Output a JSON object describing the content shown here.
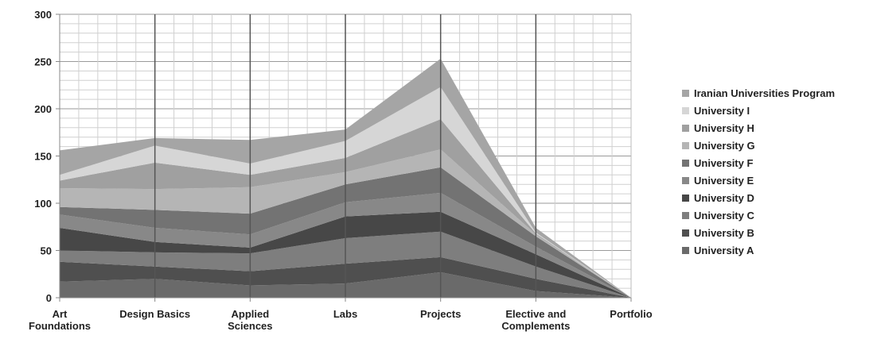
{
  "chart_data": {
    "type": "area",
    "stacked": true,
    "categories": [
      "Art Foundations",
      "Design Basics",
      "Applied Sciences",
      "Labs",
      "Projects",
      "Elective and Complements",
      "Portfolio"
    ],
    "ylim": [
      0,
      300
    ],
    "yticks": [
      0,
      50,
      100,
      150,
      200,
      250,
      300
    ],
    "grid": true,
    "legend_position": "right",
    "series": [
      {
        "name": "University A",
        "values": [
          17,
          20,
          13,
          15,
          27,
          7,
          0
        ],
        "color": "#6a6a6a"
      },
      {
        "name": "University B",
        "values": [
          21,
          13,
          15,
          21,
          16,
          13,
          0
        ],
        "color": "#4f4f4f"
      },
      {
        "name": "University C",
        "values": [
          12,
          15,
          19,
          27,
          27,
          13,
          0
        ],
        "color": "#7e7e7e"
      },
      {
        "name": "University D",
        "values": [
          24,
          11,
          6,
          23,
          21,
          13,
          0
        ],
        "color": "#474747"
      },
      {
        "name": "University E",
        "values": [
          14,
          15,
          14,
          15,
          20,
          8,
          0
        ],
        "color": "#888888"
      },
      {
        "name": "University F",
        "values": [
          8,
          19,
          22,
          19,
          27,
          11,
          0
        ],
        "color": "#737373"
      },
      {
        "name": "University G",
        "values": [
          20,
          22,
          28,
          13,
          19,
          2,
          0
        ],
        "color": "#b5b5b5"
      },
      {
        "name": "University H",
        "values": [
          8,
          28,
          13,
          15,
          32,
          1,
          0
        ],
        "color": "#a0a0a0"
      },
      {
        "name": "University I",
        "values": [
          6,
          18,
          12,
          18,
          34,
          1,
          0
        ],
        "color": "#d6d6d6"
      },
      {
        "name": "Iranian Universities Program",
        "values": [
          26,
          8,
          25,
          12,
          30,
          5,
          0
        ],
        "color": "#a5a5a5"
      }
    ]
  }
}
